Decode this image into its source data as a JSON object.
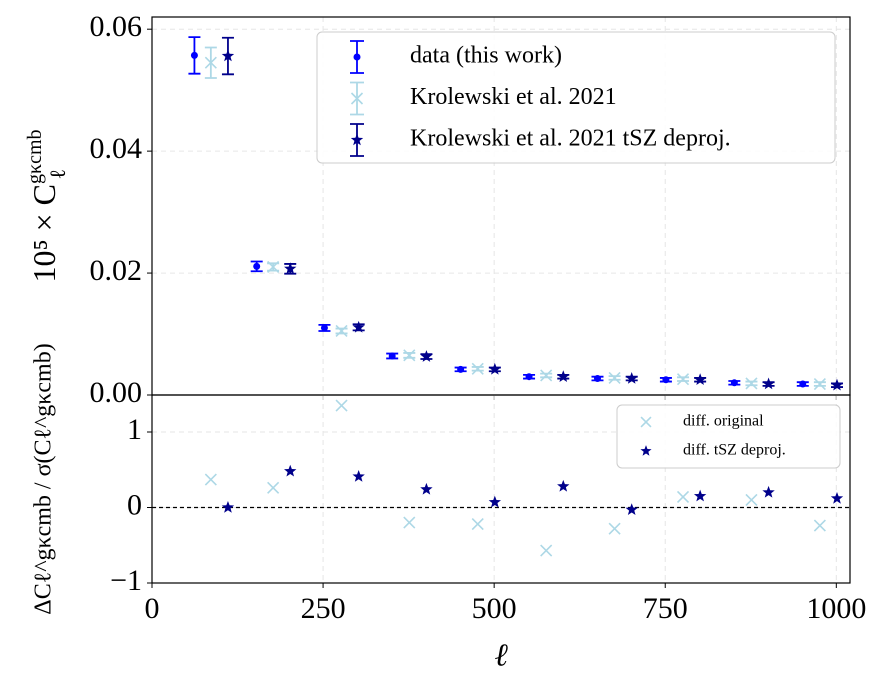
{
  "chart_data": [
    {
      "type": "errorbar",
      "ylabel": {
        "main": "10⁵ × C",
        "sub": "ℓ",
        "sup": "gκcmb"
      },
      "xlim": [
        0,
        1020
      ],
      "xticks": [
        0,
        250,
        500,
        750,
        1000
      ],
      "ylim": [
        0,
        0.062
      ],
      "yticks": [
        {
          "value": 0,
          "label": "0.00"
        },
        {
          "value": 0.02,
          "label": "0.02"
        },
        {
          "value": 0.04,
          "label": "0.04"
        },
        {
          "value": 0.06,
          "label": "0.06"
        }
      ],
      "grid": true,
      "legend": "upper right",
      "series": [
        {
          "name": "data (this work)",
          "color": "#0000ff",
          "marker": "circle",
          "x": [
            62,
            153,
            252,
            351,
            451,
            551,
            651,
            751,
            851,
            951
          ],
          "values": [
            0.0557,
            0.0211,
            0.011,
            0.0064,
            0.0042,
            0.003,
            0.0027,
            0.0025,
            0.002,
            0.0018
          ],
          "errors": [
            0.003,
            0.0008,
            0.0005,
            0.0004,
            0.0003,
            0.0003,
            0.0003,
            0.0003,
            0.0003,
            0.0003
          ]
        },
        {
          "name": "Krolewski et al. 2021",
          "color": "#add8e6",
          "marker": "x",
          "x": [
            86,
            177,
            277,
            376,
            476,
            576,
            676,
            776,
            876,
            976
          ],
          "values": [
            0.0545,
            0.021,
            0.0105,
            0.0065,
            0.0043,
            0.0032,
            0.0028,
            0.0026,
            0.0019,
            0.0018
          ],
          "errors": [
            0.0025,
            0.0006,
            0.0004,
            0.0004,
            0.0003,
            0.0003,
            0.0003,
            0.0003,
            0.0003,
            0.0003
          ]
        },
        {
          "name": "Krolewski et al. 2021 tSZ deproj.",
          "color": "#00008b",
          "marker": "star",
          "x": [
            111,
            202,
            302,
            401,
            501,
            601,
            701,
            801,
            901,
            1001
          ],
          "values": [
            0.0556,
            0.0207,
            0.0111,
            0.0063,
            0.0042,
            0.003,
            0.0027,
            0.0025,
            0.0018,
            0.0016
          ],
          "errors": [
            0.003,
            0.0008,
            0.0005,
            0.0004,
            0.0003,
            0.0003,
            0.0003,
            0.0003,
            0.0003,
            0.0003
          ]
        }
      ]
    },
    {
      "type": "scatter",
      "ylabel": "ΔCℓ^gκcmb / σ(Cℓ^gκcmb)",
      "xlabel": "ℓ",
      "xlim": [
        0,
        1020
      ],
      "xticks": [
        0,
        250,
        500,
        750,
        1000
      ],
      "ylim": [
        -1,
        1.49
      ],
      "yticks": [
        {
          "value": -1,
          "label": "−1"
        },
        0,
        1
      ],
      "grid": true,
      "hline": 0,
      "legend": "upper right",
      "series": [
        {
          "name": "diff. original",
          "color": "#add8e6",
          "marker": "x",
          "x": [
            86,
            177,
            277,
            376,
            476,
            576,
            676,
            776,
            876,
            976
          ],
          "values": [
            0.37,
            0.26,
            1.35,
            -0.2,
            -0.22,
            -0.57,
            -0.28,
            0.14,
            0.1,
            -0.24
          ]
        },
        {
          "name": "diff. tSZ deproj.",
          "color": "#00008b",
          "marker": "star",
          "x": [
            111,
            202,
            302,
            401,
            501,
            601,
            701,
            801,
            901,
            1001
          ],
          "values": [
            0.0,
            0.48,
            0.41,
            0.24,
            0.07,
            0.28,
            -0.03,
            0.15,
            0.2,
            0.12
          ]
        }
      ]
    }
  ]
}
